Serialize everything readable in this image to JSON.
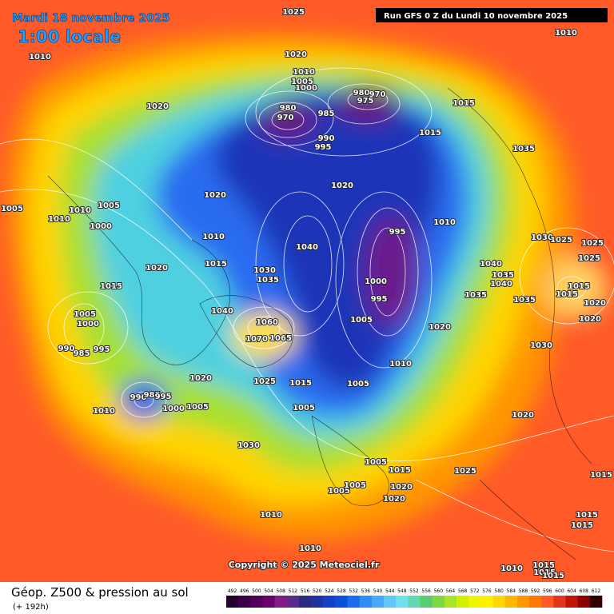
{
  "header": {
    "date": "Mardi 18 novembre 2025",
    "time": "1:00 locale",
    "run": "Run GFS 0 Z du Lundi 10 novembre 2025"
  },
  "map": {
    "copyright": "Copyright © 2025 Meteociel.fr",
    "isobar_labels": [
      "1025",
      "1010",
      "1010",
      "1020",
      "1010",
      "1005",
      "1000",
      "980",
      "975",
      "970",
      "980",
      "970",
      "985",
      "1020",
      "1015",
      "990",
      "995",
      "1015",
      "1035",
      "1020",
      "1020",
      "1005",
      "1010",
      "1010",
      "1005",
      "1000",
      "1010",
      "995",
      "1030",
      "1025",
      "1025",
      "1010",
      "1040",
      "1025",
      "1020",
      "1015",
      "1030",
      "1035",
      "1040",
      "1035",
      "1040",
      "1000",
      "1015",
      "1015",
      "1015",
      "995",
      "1035",
      "1035",
      "1020",
      "1040",
      "1005",
      "1000",
      "1005",
      "1060",
      "1020",
      "1020",
      "1065",
      "1070",
      "990",
      "985",
      "995",
      "1030",
      "1010",
      "1020",
      "1025",
      "1015",
      "1005",
      "990",
      "985",
      "995",
      "1000",
      "1005",
      "1005",
      "1010",
      "1020",
      "1030",
      "1005",
      "1015",
      "1025",
      "1015",
      "1005",
      "1005",
      "1020",
      "1020",
      "1010",
      "1015",
      "1015",
      "1010",
      "1010",
      "1015",
      "1015",
      "1015"
    ]
  },
  "legend": {
    "title": "Géop. Z500 & pression au sol",
    "lead": "(+ 192h)",
    "scale": [
      492,
      496,
      500,
      504,
      508,
      512,
      516,
      520,
      524,
      528,
      532,
      536,
      540,
      544,
      548,
      552,
      556,
      560,
      564,
      568,
      572,
      576,
      580,
      584,
      588,
      592,
      596,
      600,
      604,
      608,
      612
    ]
  }
}
